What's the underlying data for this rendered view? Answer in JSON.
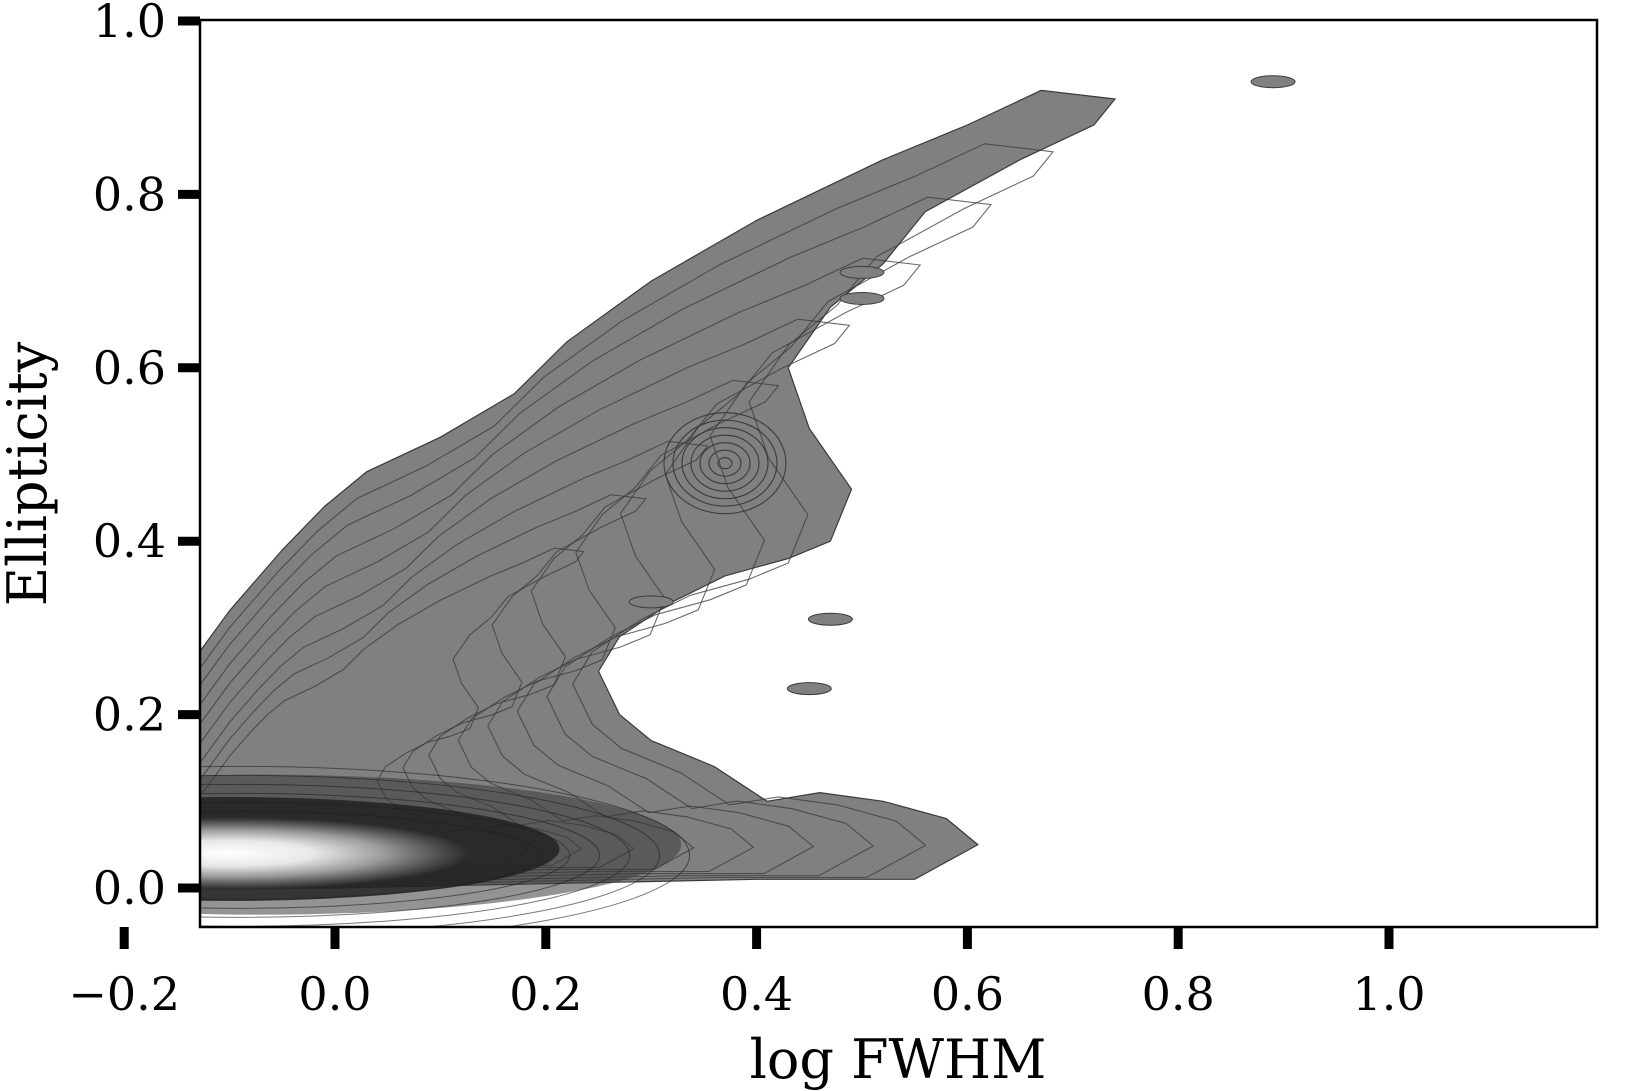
{
  "chart_data": {
    "type": "heatmap",
    "style": "filled density contours, grayscale",
    "title": "",
    "xlabel": "log FWHM",
    "ylabel": "Ellipticity",
    "xlim": [
      -0.33,
      1.0
    ],
    "ylim": [
      -0.05,
      1.0
    ],
    "x_ticks": [
      -0.2,
      0.0,
      0.2,
      0.4,
      0.6,
      0.8,
      1.0
    ],
    "x_tick_labels": [
      "−0.2",
      "0.0",
      "0.2",
      "0.4",
      "0.6",
      "0.8",
      "1.0"
    ],
    "y_ticks": [
      0.0,
      0.2,
      0.4,
      0.6,
      0.8,
      1.0
    ],
    "y_tick_labels": [
      "0.0",
      "0.2",
      "0.4",
      "0.6",
      "0.8",
      "1.0"
    ],
    "grid": false,
    "legend": "none",
    "colors": {
      "fill": "#808080",
      "contour_line": "#3a3a3a",
      "peak": "#ffffff"
    },
    "outer_region": [
      [
        -0.33,
        0.01
      ],
      [
        -0.25,
        0.0
      ],
      [
        0.0,
        0.0
      ],
      [
        0.2,
        0.005
      ],
      [
        0.4,
        0.01
      ],
      [
        0.55,
        0.01
      ],
      [
        0.61,
        0.05
      ],
      [
        0.58,
        0.08
      ],
      [
        0.52,
        0.1
      ],
      [
        0.46,
        0.11
      ],
      [
        0.41,
        0.1
      ],
      [
        0.36,
        0.14
      ],
      [
        0.3,
        0.17
      ],
      [
        0.27,
        0.2
      ],
      [
        0.25,
        0.25
      ],
      [
        0.27,
        0.29
      ],
      [
        0.32,
        0.33
      ],
      [
        0.37,
        0.36
      ],
      [
        0.43,
        0.38
      ],
      [
        0.47,
        0.4
      ],
      [
        0.49,
        0.46
      ],
      [
        0.45,
        0.53
      ],
      [
        0.43,
        0.6
      ],
      [
        0.47,
        0.67
      ],
      [
        0.52,
        0.72
      ],
      [
        0.56,
        0.78
      ],
      [
        0.65,
        0.84
      ],
      [
        0.72,
        0.88
      ],
      [
        0.74,
        0.91
      ],
      [
        0.67,
        0.92
      ],
      [
        0.6,
        0.88
      ],
      [
        0.52,
        0.84
      ],
      [
        0.4,
        0.77
      ],
      [
        0.3,
        0.7
      ],
      [
        0.22,
        0.63
      ],
      [
        0.17,
        0.57
      ],
      [
        0.1,
        0.52
      ],
      [
        0.03,
        0.48
      ],
      [
        -0.01,
        0.44
      ],
      [
        -0.05,
        0.39
      ],
      [
        -0.1,
        0.32
      ],
      [
        -0.16,
        0.22
      ],
      [
        -0.25,
        0.16
      ],
      [
        -0.33,
        0.07
      ]
    ],
    "secondary_peak": {
      "x": 0.37,
      "y": 0.49
    },
    "peak_density": {
      "x": -0.1,
      "y": 0.04
    },
    "isolated_islands": [
      {
        "x": 0.89,
        "y": 0.93
      },
      {
        "x": 0.5,
        "y": 0.71
      },
      {
        "x": 0.5,
        "y": 0.68
      },
      {
        "x": 0.47,
        "y": 0.31
      },
      {
        "x": 0.45,
        "y": 0.23
      },
      {
        "x": 0.3,
        "y": 0.33
      }
    ]
  }
}
